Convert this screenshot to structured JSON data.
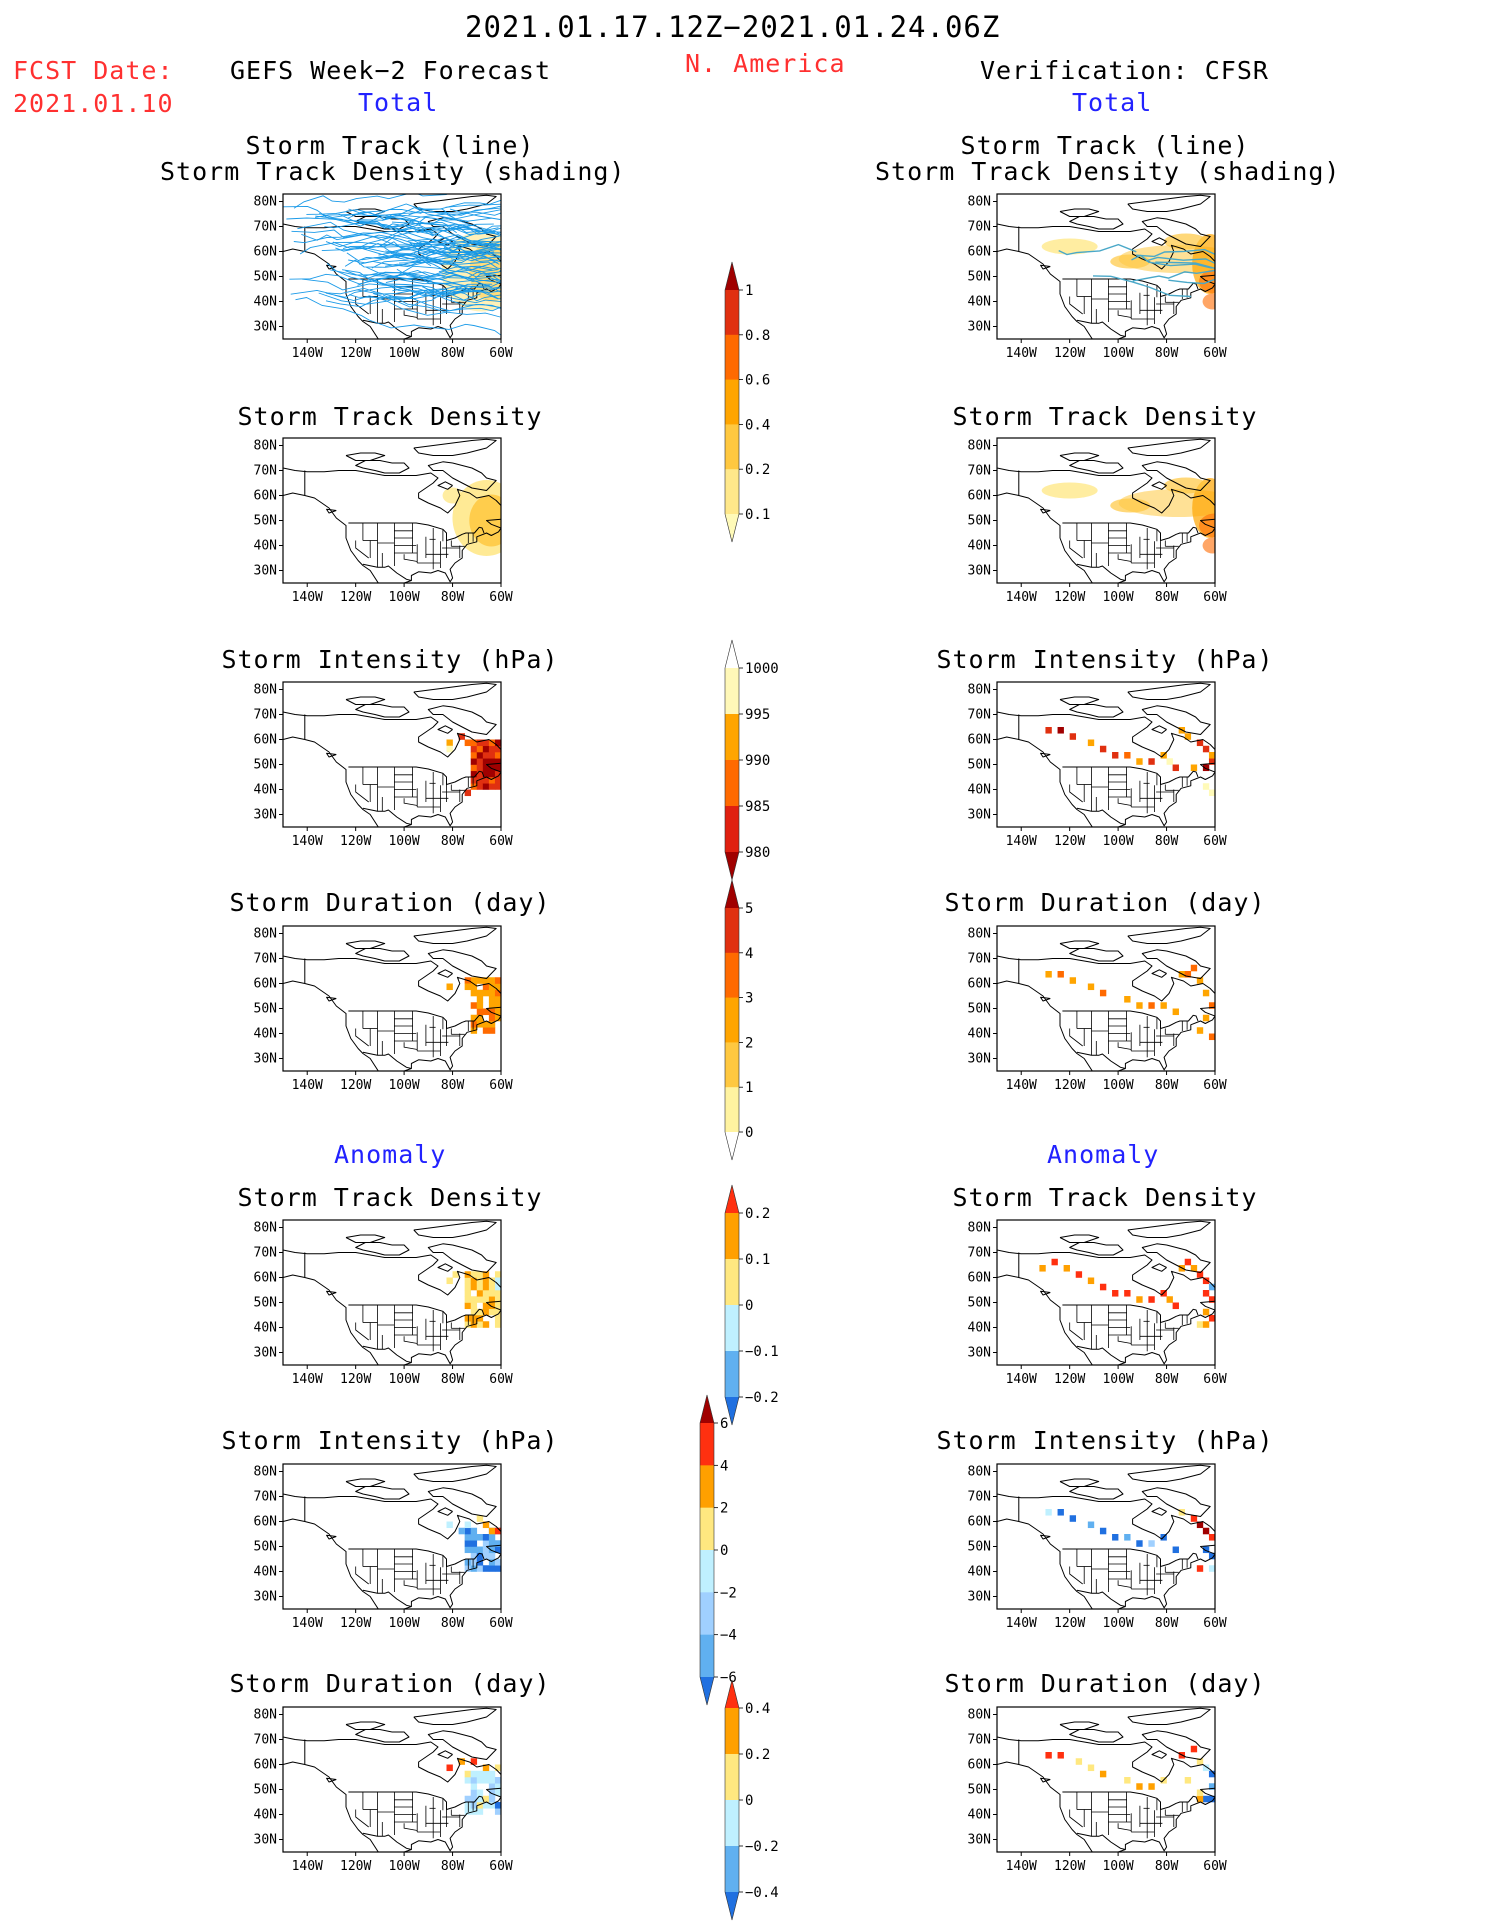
{
  "header": {
    "date_range": "2021.01.17.12Z−2021.01.24.06Z",
    "fcst_label": "FCST Date:",
    "fcst_date": "2021.01.10",
    "forecast_title": "GEFS Week−2 Forecast",
    "region": "N. America",
    "verification_title": "Verification: CFSR"
  },
  "sections": {
    "total": "Total",
    "anomaly": "Anomaly"
  },
  "panel_titles": {
    "track": [
      "Storm Track (line)",
      "Storm Track Density (shading)"
    ],
    "density": "Storm Track Density",
    "intensity": "Storm Intensity (hPa)",
    "duration": "Storm Duration (day)"
  },
  "map_axes": {
    "lat_labels": [
      "80N",
      "70N",
      "60N",
      "50N",
      "40N",
      "30N"
    ],
    "lon_labels": [
      "140W",
      "120W",
      "100W",
      "80W",
      "60W"
    ]
  },
  "colorbars": [
    {
      "id": "density",
      "labels": [
        "1",
        "0.8",
        "0.6",
        "0.4",
        "0.2",
        "0.1"
      ],
      "colors": [
        "#a00000",
        "#e03010",
        "#ff6a00",
        "#ffa500",
        "#ffc840",
        "#ffe88a",
        "#fffab8"
      ]
    },
    {
      "id": "intensity",
      "labels": [
        "1000",
        "995",
        "990",
        "985",
        "980"
      ],
      "colors": [
        "#ffffff",
        "#fff8b8",
        "#ffa500",
        "#ff6a00",
        "#e02010",
        "#a00000"
      ]
    },
    {
      "id": "duration",
      "labels": [
        "5",
        "4",
        "3",
        "2",
        "1",
        "0"
      ],
      "colors": [
        "#a00000",
        "#e03010",
        "#ff6a00",
        "#ffa500",
        "#ffc840",
        "#fff3a0",
        "#ffffff"
      ]
    },
    {
      "id": "density-anom",
      "labels": [
        "0.2",
        "0.1",
        "0",
        "−0.1",
        "−0.2"
      ],
      "colors": [
        "#ff3010",
        "#ffa000",
        "#ffe880",
        "#bff0ff",
        "#60b0f0",
        "#2070e0"
      ]
    },
    {
      "id": "intensity-anom",
      "labels": [
        "6",
        "4",
        "2",
        "0",
        "−2",
        "−4",
        "−6"
      ],
      "colors": [
        "#a00000",
        "#ff3010",
        "#ffa000",
        "#ffe880",
        "#bff0ff",
        "#a0d0ff",
        "#60b0f0",
        "#2070e0"
      ]
    },
    {
      "id": "duration-anom",
      "labels": [
        "0.4",
        "0.2",
        "0",
        "−0.2",
        "−0.4"
      ],
      "colors": [
        "#ff3010",
        "#ffa000",
        "#ffe880",
        "#bff0ff",
        "#60b0f0",
        "#2070e0"
      ]
    }
  ],
  "colors": {
    "header_red": "#ff3030",
    "section_blue": "#2222ff",
    "track_line": "#1a9ae8"
  }
}
